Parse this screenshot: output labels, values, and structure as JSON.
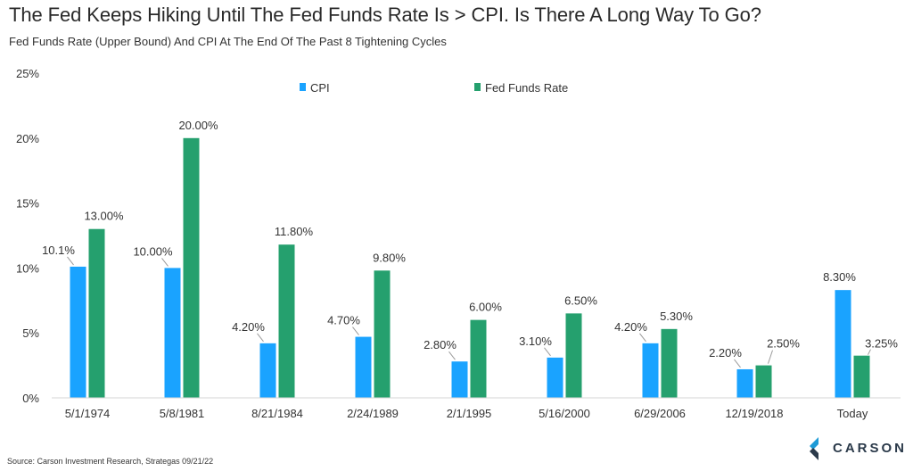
{
  "title": "The Fed Keeps Hiking Until The Fed Funds Rate Is > CPI. Is There A Long Way To Go?",
  "subtitle": "Fed Funds Rate (Upper Bound) And CPI At The End Of The Past 8 Tightening Cycles",
  "source": "Source: Carson Investment Research, Strategas 09/21/22",
  "logo_text": "CARSON",
  "colors": {
    "cpi": "#1aa3ff",
    "ffr": "#25a06e",
    "logo_blue": "#1e9bd7",
    "logo_dark": "#2b3a4a"
  },
  "chart_data": {
    "type": "bar",
    "categories": [
      "5/1/1974",
      "5/8/1981",
      "8/21/1984",
      "2/24/1989",
      "2/1/1995",
      "5/16/2000",
      "6/29/2006",
      "12/19/2018",
      "Today"
    ],
    "series": [
      {
        "name": "CPI",
        "values": [
          10.1,
          10.0,
          4.2,
          4.7,
          2.8,
          3.1,
          4.2,
          2.2,
          8.3
        ],
        "labels": [
          "10.1%",
          "10.00%",
          "4.20%",
          "4.70%",
          "2.80%",
          "3.10%",
          "4.20%",
          "2.20%",
          "8.30%"
        ]
      },
      {
        "name": "Fed Funds Rate",
        "values": [
          13.0,
          20.0,
          11.8,
          9.8,
          6.0,
          6.5,
          5.3,
          2.5,
          3.25
        ],
        "labels": [
          "13.00%",
          "20.00%",
          "11.80%",
          "9.80%",
          "6.00%",
          "6.50%",
          "5.30%",
          "2.50%",
          "3.25%"
        ]
      }
    ],
    "yticks": [
      "0%",
      "5%",
      "10%",
      "15%",
      "20%",
      "25%"
    ],
    "ylim": [
      0,
      25
    ],
    "legend": "top-center",
    "grid": false
  }
}
